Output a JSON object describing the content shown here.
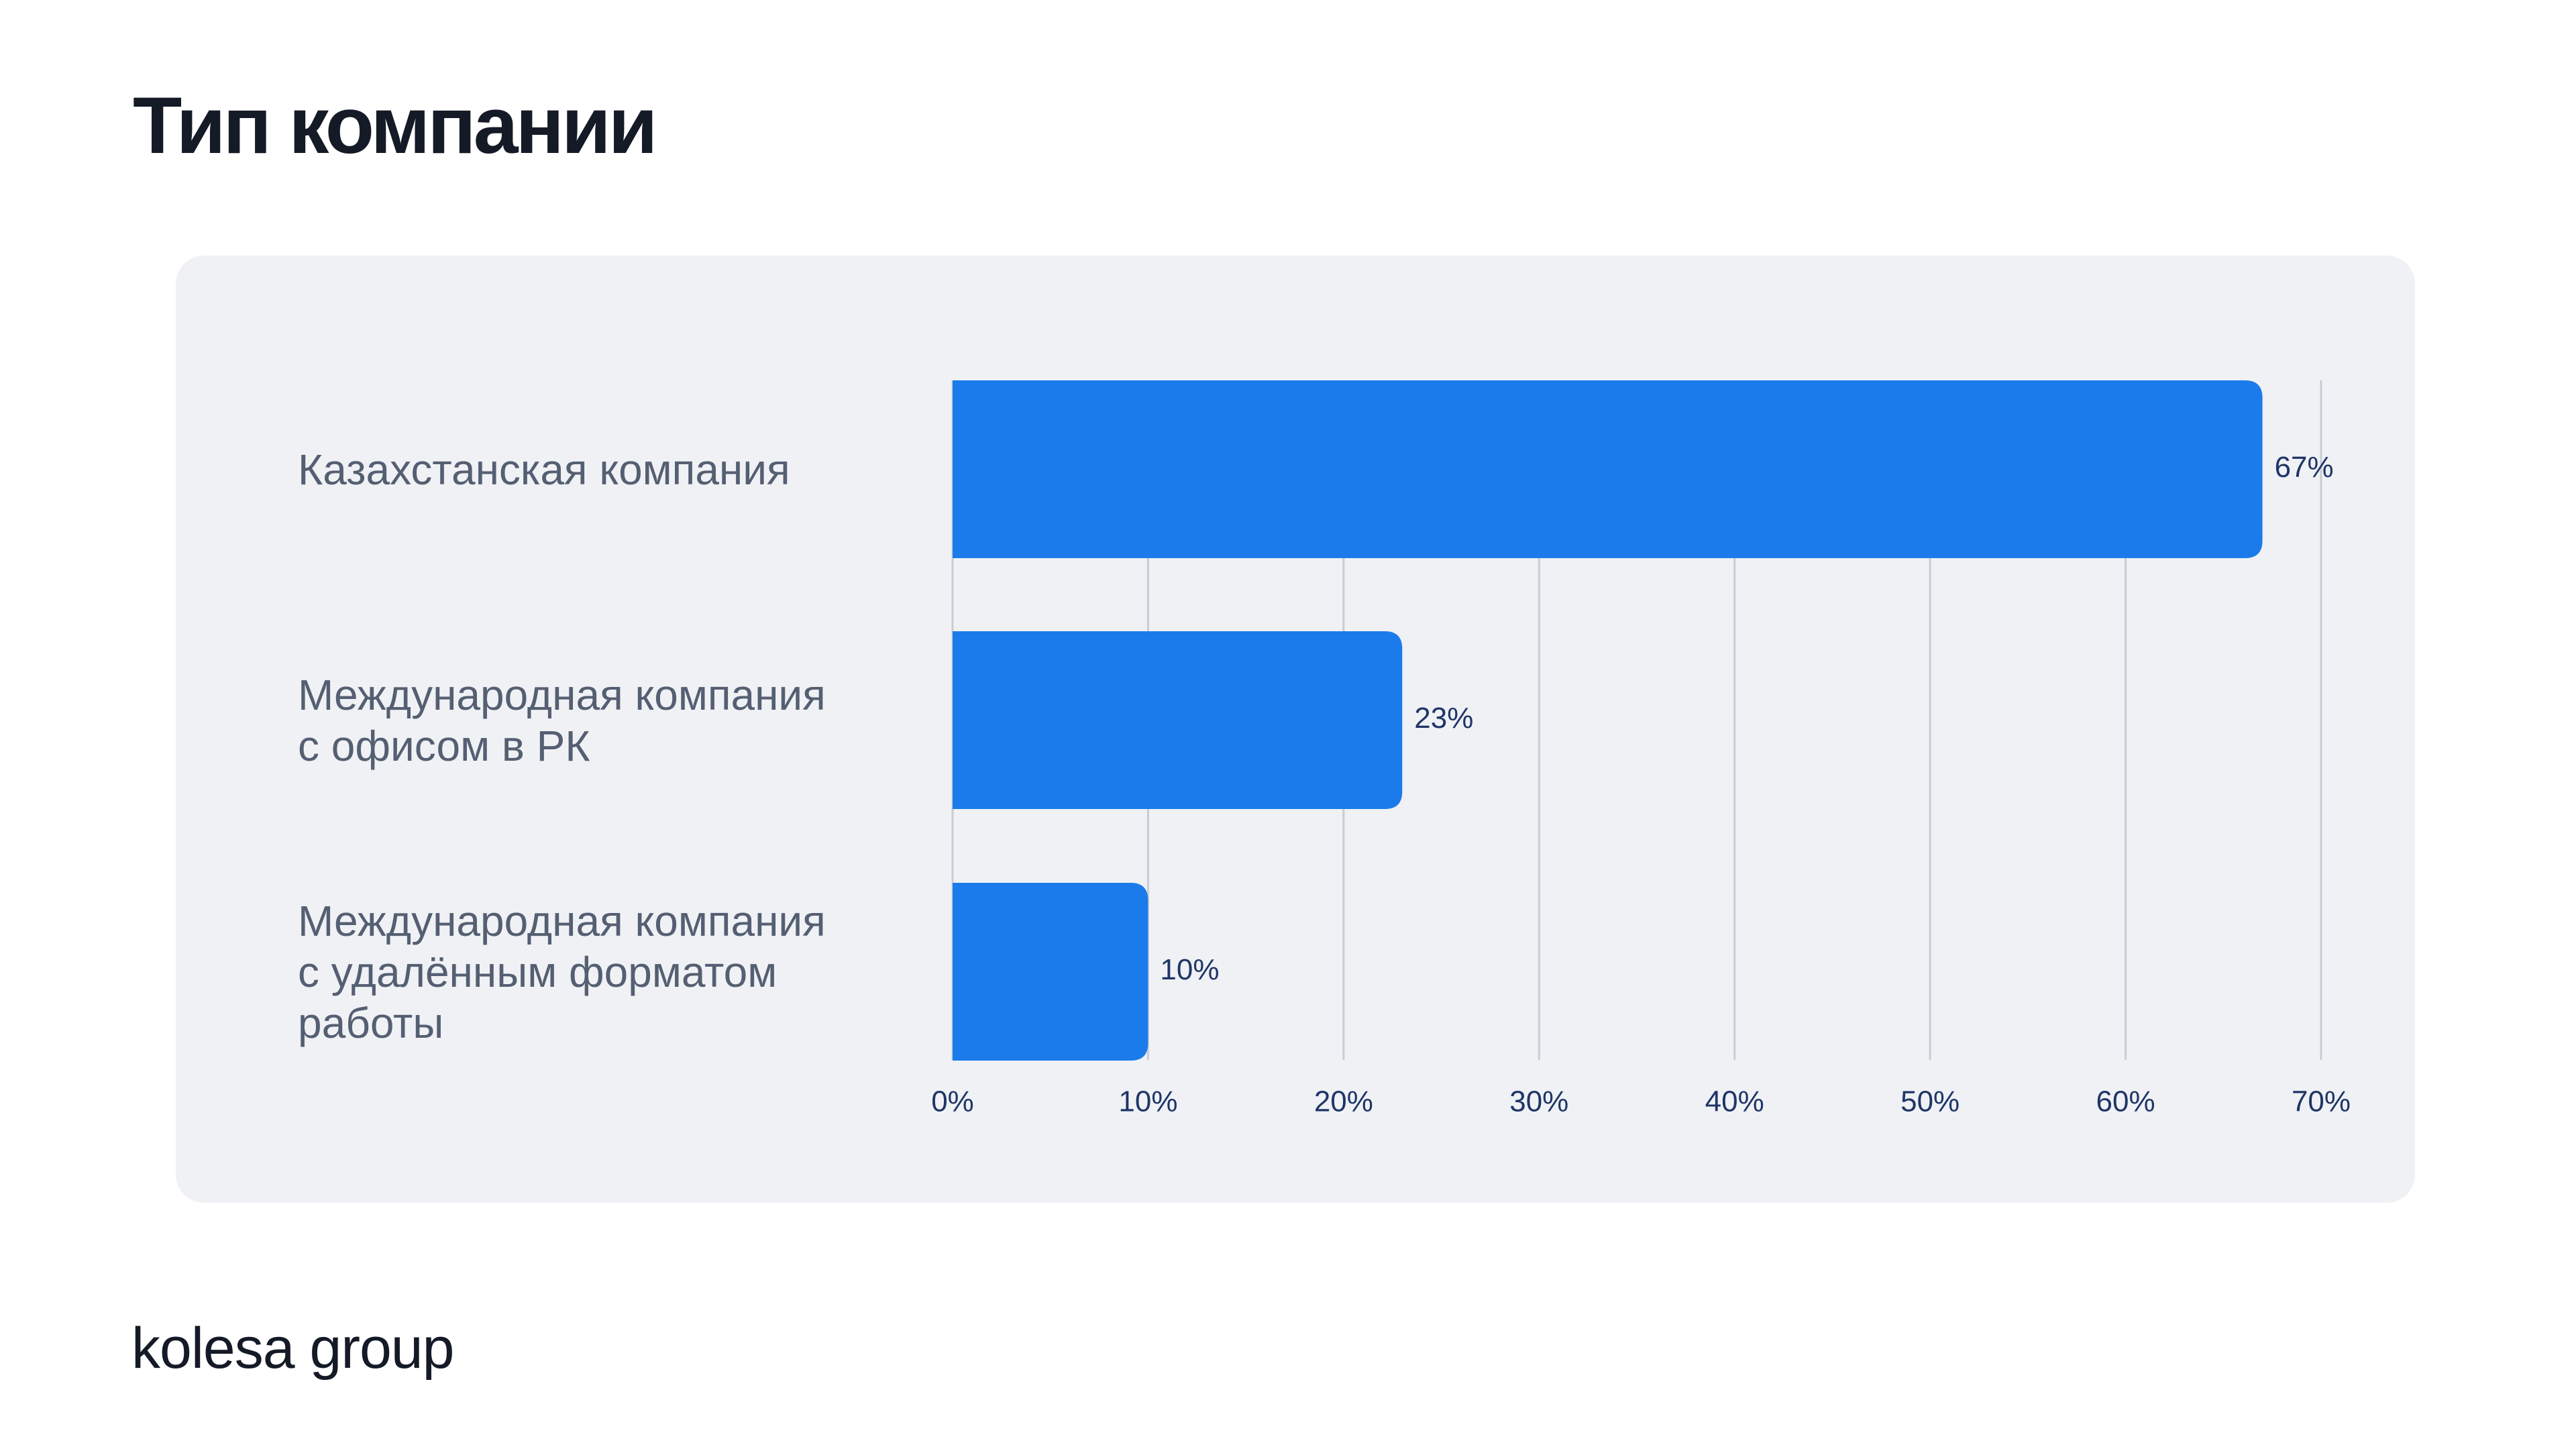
{
  "slide": {
    "title": "Тип компании",
    "logo_text": "kolesa group"
  },
  "colors": {
    "bar": "#1b7bea",
    "grid": "#c9ccd4",
    "tick_text": "#1f3566",
    "value_text": "#1f3566",
    "category_text": "#555f72"
  },
  "chart_data": {
    "type": "bar",
    "orientation": "horizontal",
    "categories": [
      "Казахстанская компания",
      "Международная компания\nс офисом в РК",
      "Международная компания\nс удалённым форматом\nработы"
    ],
    "values": [
      67,
      23,
      10
    ],
    "value_labels": [
      "67%",
      "23%",
      "10%"
    ],
    "xlim": [
      0,
      70
    ],
    "xticks": [
      0,
      10,
      20,
      30,
      40,
      50,
      60,
      70
    ],
    "xtick_labels": [
      "0%",
      "10%",
      "20%",
      "30%",
      "40%",
      "50%",
      "60%",
      "70%"
    ],
    "grid": true
  }
}
